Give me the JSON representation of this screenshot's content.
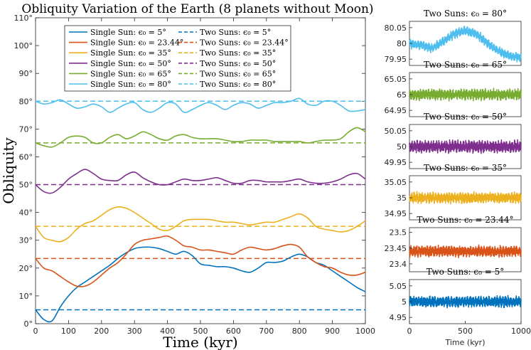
{
  "figure_title": "Obliquity Variation of the Earth (8 planets without Moon)",
  "chart_data": [
    {
      "type": "line",
      "title": "Obliquity Variation of the Earth (8 planets without Moon)",
      "xlabel": "Time (kyr)",
      "ylabel": "Obliquity",
      "xlim": [
        0,
        1000
      ],
      "ylim": [
        0,
        110
      ],
      "xticks": [
        0,
        100,
        200,
        300,
        400,
        500,
        600,
        700,
        800,
        900,
        1000
      ],
      "xtick_labels": [
        "0",
        "100",
        "200",
        "300",
        "400",
        "500",
        "600",
        "700",
        "800",
        "900",
        "1000"
      ],
      "yticks": [
        0,
        10,
        20,
        30,
        40,
        50,
        60,
        70,
        80,
        90,
        100,
        110
      ],
      "ytick_labels": [
        "0°",
        "10°",
        "20°",
        "30°",
        "40°",
        "50°",
        "60°",
        "70°",
        "80°",
        "90°",
        "100°",
        "110°"
      ],
      "legend_position": "top",
      "colors": [
        "#0072bd",
        "#d95319",
        "#edb120",
        "#7e2f8e",
        "#77ac30",
        "#4dbeee"
      ],
      "legend": [
        "Single Sun: ϵ₀ = 5°",
        "Two Suns: ϵ₀ = 5°",
        "Single Sun: ϵ₀ = 23.44°",
        "Two Suns: ϵ₀ = 23.44°",
        "Single Sun: ϵ₀ = 35°",
        "Two Suns: ϵ₀ = 35°",
        "Single Sun: ϵ₀ = 50°",
        "Two Suns: ϵ₀ = 50°",
        "Single Sun: ϵ₀ = 65°",
        "Two Suns: ϵ₀ = 65°",
        "Single Sun: ϵ₀ = 80°",
        "Two Suns: ϵ₀ = 80°"
      ],
      "x": [
        0,
        25,
        50,
        75,
        100,
        125,
        150,
        175,
        200,
        225,
        250,
        275,
        300,
        325,
        350,
        375,
        400,
        425,
        450,
        475,
        500,
        525,
        550,
        575,
        600,
        625,
        650,
        675,
        700,
        725,
        750,
        775,
        800,
        825,
        850,
        875,
        900,
        925,
        950,
        975,
        1000
      ],
      "single_sun_series": [
        {
          "name": "Single Sun: ϵ₀ = 5°",
          "initial": 5,
          "values": [
            5,
            1.5,
            1,
            6,
            10,
            13,
            15,
            17,
            19,
            21,
            23.5,
            25.5,
            27,
            27.5,
            27.5,
            27,
            26,
            25,
            26,
            24.5,
            21.5,
            21,
            20.5,
            20.5,
            20,
            19,
            18.5,
            20,
            22,
            22,
            22.5,
            24,
            25,
            24,
            22,
            21,
            19,
            17,
            15,
            13,
            11.5
          ]
        },
        {
          "name": "Single Sun: ϵ₀ = 23.44°",
          "initial": 23.44,
          "values": [
            23.44,
            20,
            19,
            17,
            15,
            13.5,
            13.5,
            15,
            17.5,
            20,
            22,
            25,
            28.5,
            30,
            30.5,
            31,
            31.5,
            30,
            28,
            27.5,
            26.5,
            26.5,
            26,
            25.5,
            25,
            26.5,
            27.5,
            27,
            26.5,
            27,
            28,
            28.5,
            27.5,
            24,
            22,
            20.5,
            20,
            18.5,
            17.5,
            17.5,
            18.5
          ]
        },
        {
          "name": "Single Sun: ϵ₀ = 35°",
          "initial": 35,
          "values": [
            35,
            31,
            30,
            29.5,
            31,
            34,
            36,
            37,
            39,
            41,
            42,
            41.5,
            40,
            38,
            36,
            34,
            33.5,
            35,
            37,
            37.5,
            37.5,
            37.5,
            37,
            36.5,
            36.5,
            36,
            35.5,
            36,
            36.5,
            36.5,
            37.5,
            38.5,
            39.5,
            38,
            35,
            34,
            33.5,
            33,
            33.5,
            35,
            37
          ]
        },
        {
          "name": "Single Sun: ϵ₀ = 50°",
          "initial": 50,
          "values": [
            50,
            47.5,
            47,
            49,
            52,
            54,
            55.5,
            54,
            52,
            51.5,
            51.5,
            53.5,
            54.5,
            52.5,
            51,
            50,
            50,
            51,
            52,
            51.5,
            51.5,
            52,
            52.5,
            51.5,
            50.5,
            50.5,
            51.5,
            51.5,
            51,
            51,
            51,
            51.5,
            52,
            51,
            50.5,
            50.5,
            51,
            52,
            53.5,
            54,
            52
          ]
        },
        {
          "name": "Single Sun: ϵ₀ = 65°",
          "initial": 65,
          "values": [
            65,
            64,
            63.5,
            65,
            67,
            67.5,
            67,
            65,
            65,
            67,
            68,
            66.5,
            67.5,
            69,
            68,
            66.5,
            66,
            67.5,
            68,
            67,
            66.5,
            66.5,
            66.5,
            66,
            65.5,
            65.5,
            66,
            66,
            66,
            65.5,
            65.5,
            65.5,
            65.5,
            65,
            65.5,
            66,
            66,
            66.5,
            69,
            70.5,
            69
          ]
        },
        {
          "name": "Single Sun: ϵ₀ = 80°",
          "initial": 80,
          "values": [
            80,
            79,
            79.5,
            80.5,
            79,
            77.5,
            78,
            79,
            78,
            76,
            77.5,
            79,
            79.5,
            77,
            76,
            77.5,
            79.5,
            79,
            76,
            77,
            78.5,
            79.5,
            78.5,
            77,
            78.5,
            79.5,
            79,
            77.5,
            78.5,
            79.5,
            79.5,
            80,
            81,
            79,
            78.5,
            80,
            80,
            78.5,
            76.5,
            76.5,
            77
          ]
        }
      ],
      "two_suns_series": [
        {
          "name": "Two Suns: ϵ₀ = 5°",
          "value": 5
        },
        {
          "name": "Two Suns: ϵ₀ = 23.44°",
          "value": 23.44
        },
        {
          "name": "Two Suns: ϵ₀ = 35°",
          "value": 35
        },
        {
          "name": "Two Suns: ϵ₀ = 50°",
          "value": 50
        },
        {
          "name": "Two Suns: ϵ₀ = 65°",
          "value": 65
        },
        {
          "name": "Two Suns: ϵ₀ = 80°",
          "value": 80
        }
      ]
    },
    {
      "type": "line",
      "title": "Two Suns: ϵ₀ = 80°",
      "color": "#4dbeee",
      "xlim": [
        0,
        1000
      ],
      "ylim": [
        79.93,
        80.07
      ],
      "yticks": [
        79.95,
        80,
        80.05
      ],
      "ytick_labels": [
        "79.95",
        "80",
        "80.05"
      ],
      "base_value": 80,
      "band_halfwidth": 0.015,
      "trend": {
        "x": [
          0,
          100,
          200,
          300,
          400,
          500,
          600,
          700,
          800,
          900,
          1000
        ],
        "y": [
          80.0,
          79.995,
          79.985,
          80.005,
          80.03,
          80.04,
          80.03,
          80.0,
          79.975,
          79.96,
          79.955
        ]
      }
    },
    {
      "type": "line",
      "title": "Two Suns: ϵ₀ = 65°",
      "color": "#77ac30",
      "xlim": [
        0,
        1000
      ],
      "ylim": [
        64.93,
        65.07
      ],
      "yticks": [
        64.95,
        65,
        65.05
      ],
      "ytick_labels": [
        "64.95",
        "65",
        "65.05"
      ],
      "base_value": 65,
      "band_halfwidth": 0.018,
      "trend": {
        "x": [
          0,
          1000
        ],
        "y": [
          65.0,
          65.0
        ]
      }
    },
    {
      "type": "line",
      "title": "Two Suns: ϵ₀ = 50°",
      "color": "#7e2f8e",
      "xlim": [
        0,
        1000
      ],
      "ylim": [
        49.93,
        50.07
      ],
      "yticks": [
        49.95,
        50,
        50.05
      ],
      "ytick_labels": [
        "49.95",
        "50",
        "50.05"
      ],
      "base_value": 50,
      "band_halfwidth": 0.02,
      "trend": {
        "x": [
          0,
          1000
        ],
        "y": [
          50.0,
          50.0
        ]
      }
    },
    {
      "type": "line",
      "title": "Two Suns: ϵ₀ = 35°",
      "color": "#edb120",
      "xlim": [
        0,
        1000
      ],
      "ylim": [
        34.93,
        35.07
      ],
      "yticks": [
        34.95,
        35,
        35.05
      ],
      "ytick_labels": [
        "34.95",
        "35",
        "35.05"
      ],
      "base_value": 35,
      "band_halfwidth": 0.018,
      "trend": {
        "x": [
          0,
          1000
        ],
        "y": [
          35.0,
          35.0
        ]
      }
    },
    {
      "type": "line",
      "title": "Two Suns: ϵ₀ = 23.44°",
      "color": "#d95319",
      "xlim": [
        0,
        1000
      ],
      "ylim": [
        23.375,
        23.515
      ],
      "yticks": [
        23.4,
        23.45,
        23.5
      ],
      "ytick_labels": [
        "23.4",
        "23.45",
        "23.5"
      ],
      "base_value": 23.44,
      "band_halfwidth": 0.018,
      "trend": {
        "x": [
          0,
          1000
        ],
        "y": [
          23.44,
          23.44
        ]
      }
    },
    {
      "type": "line",
      "title": "Two Suns: ϵ₀ = 5°",
      "color": "#0072bd",
      "xlim": [
        0,
        1000
      ],
      "ylim": [
        4.93,
        5.07
      ],
      "xticks": [
        0,
        500,
        1000
      ],
      "xtick_labels": [
        "0",
        "500",
        "1000"
      ],
      "xlabel": "Time (kyr)",
      "yticks": [
        4.95,
        5,
        5.05
      ],
      "ytick_labels": [
        "4.95",
        "5",
        "5.05"
      ],
      "base_value": 5,
      "band_halfwidth": 0.018,
      "trend": {
        "x": [
          0,
          1000
        ],
        "y": [
          5.0,
          5.0
        ]
      }
    }
  ]
}
